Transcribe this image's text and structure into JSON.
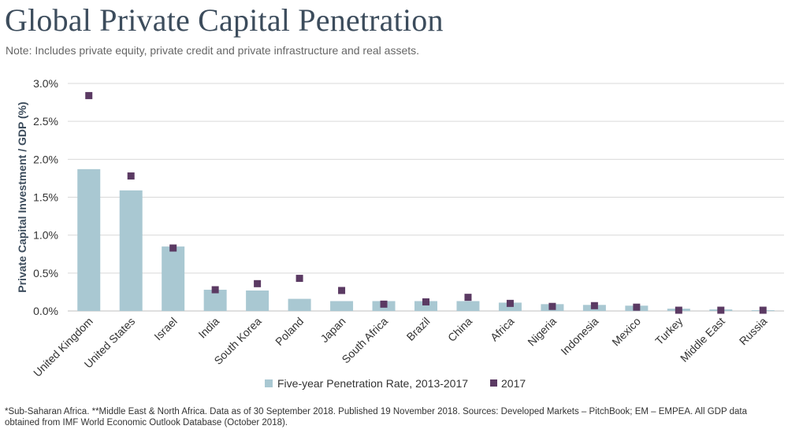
{
  "header": {
    "title": "Global Private Capital Penetration",
    "note": "Note: Includes private equity, private credit and private infrastructure and real assets."
  },
  "footnote": "*Sub-Saharan Africa. **Middle East & North Africa. Data as of 30 September 2018. Published 19 November 2018. Sources: Developed Markets – PitchBook; EM – EMPEA. All GDP data obtained from IMF World Economic Outlook Database (October 2018).",
  "colors": {
    "bar": "#a9c8d2",
    "marker": "#5b3a63",
    "grid": "#d9d9d9",
    "axis_text": "#333333"
  },
  "chart_data": {
    "type": "bar",
    "categories": [
      "United Kingdom",
      "United States",
      "Israel",
      "India",
      "South Korea",
      "Poland",
      "Japan",
      "South Africa",
      "Brazil",
      "China",
      "Africa",
      "Nigeria",
      "Indonesia",
      "Mexico",
      "Turkey",
      "Middle East",
      "Russia"
    ],
    "series": [
      {
        "name": "Five-year Penetration Rate, 2013-2017",
        "kind": "bar",
        "values": [
          1.87,
          1.59,
          0.85,
          0.28,
          0.27,
          0.16,
          0.13,
          0.13,
          0.13,
          0.13,
          0.11,
          0.09,
          0.08,
          0.07,
          0.03,
          0.02,
          0.01
        ]
      },
      {
        "name": "2017",
        "kind": "marker",
        "values": [
          2.84,
          1.78,
          0.83,
          0.28,
          0.36,
          0.43,
          0.27,
          0.09,
          0.12,
          0.18,
          0.1,
          0.06,
          0.07,
          0.05,
          0.01,
          0.01,
          0.01
        ]
      }
    ],
    "ylabel": "Private Capital Investment / GDP (%)",
    "ylim": [
      0,
      3.0
    ],
    "yticks": [
      0,
      0.5,
      1.0,
      1.5,
      2.0,
      2.5,
      3.0
    ],
    "ytick_labels": [
      "0.0%",
      "0.5%",
      "1.0%",
      "1.5%",
      "2.0%",
      "2.5%",
      "3.0%"
    ],
    "grid": true,
    "legend_position": "bottom-center"
  }
}
